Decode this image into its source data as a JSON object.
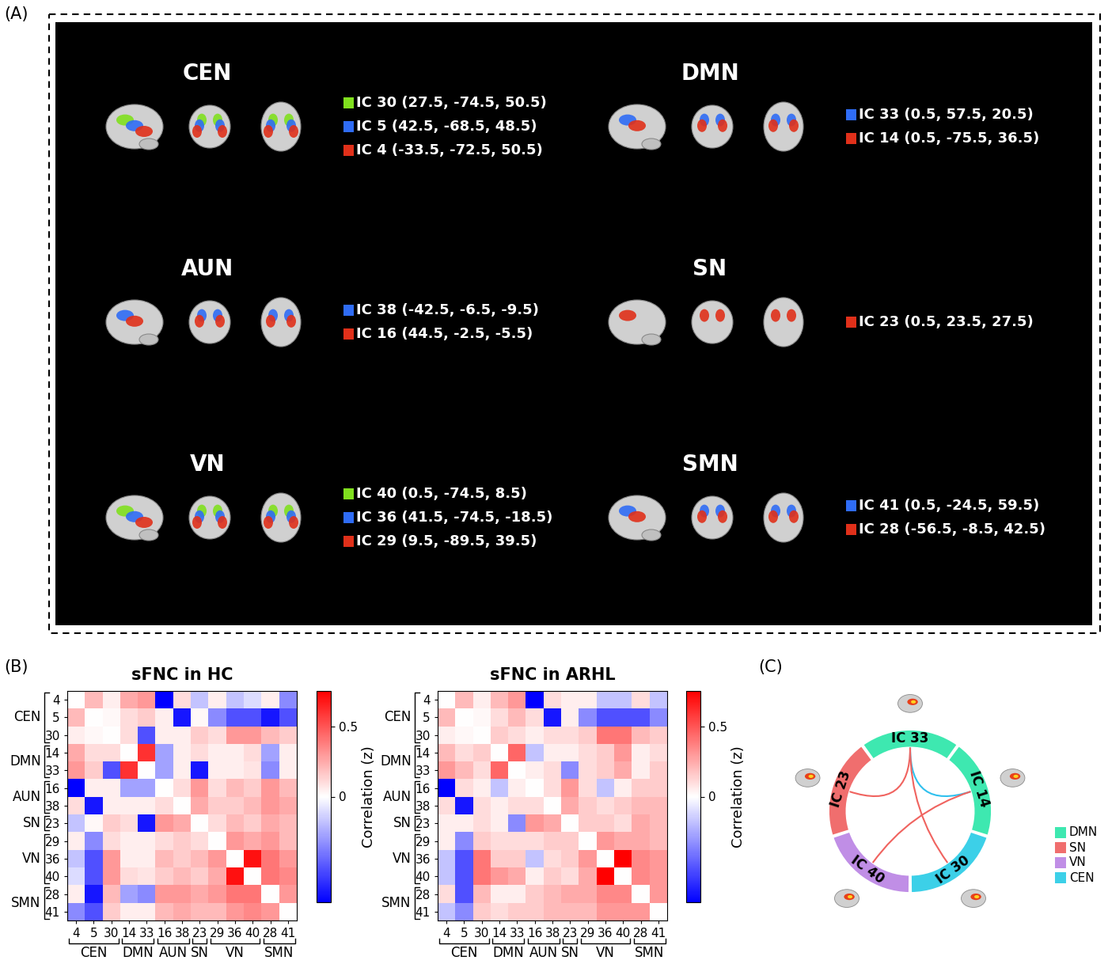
{
  "panel_labels": [
    "(A)",
    "(B)",
    "(C)"
  ],
  "panel_a": {
    "networks": [
      {
        "name": "CEN",
        "components": [
          {
            "label": "IC 30 (27.5, -74.5, 50.5)",
            "color": "#80e01e"
          },
          {
            "label": "IC 5 (42.5, -68.5, 48.5)",
            "color": "#2f6cf5"
          },
          {
            "label": "IC 4 (-33.5, -72.5, 50.5)",
            "color": "#e0301a"
          }
        ]
      },
      {
        "name": "DMN",
        "components": [
          {
            "label": "IC 33 (0.5, 57.5, 20.5)",
            "color": "#2f6cf5"
          },
          {
            "label": "IC 14 (0.5, -75.5, 36.5)",
            "color": "#e0301a"
          }
        ]
      },
      {
        "name": "AUN",
        "components": [
          {
            "label": "IC 38 (-42.5, -6.5, -9.5)",
            "color": "#2f6cf5"
          },
          {
            "label": "IC 16 (44.5, -2.5, -5.5)",
            "color": "#e0301a"
          }
        ]
      },
      {
        "name": "SN",
        "components": [
          {
            "label": "IC 23 (0.5, 23.5, 27.5)",
            "color": "#e0301a"
          }
        ]
      },
      {
        "name": "VN",
        "components": [
          {
            "label": "IC 40 (0.5, -74.5, 8.5)",
            "color": "#80e01e"
          },
          {
            "label": "IC 36 (41.5, -74.5, -18.5)",
            "color": "#2f6cf5"
          },
          {
            "label": "IC 29 (9.5, -89.5, 39.5)",
            "color": "#e0301a"
          }
        ]
      },
      {
        "name": "SMN",
        "components": [
          {
            "label": "IC 41 (0.5, -24.5, 59.5)",
            "color": "#2f6cf5"
          },
          {
            "label": "IC 28 (-56.5, -8.5, 42.5)",
            "color": "#e0301a"
          }
        ]
      }
    ]
  },
  "chart_data": [
    {
      "type": "heatmap",
      "title": "sFNC in HC",
      "categories": [
        "4",
        "5",
        "30",
        "14",
        "33",
        "16",
        "38",
        "23",
        "29",
        "36",
        "40",
        "28",
        "41"
      ],
      "groups": [
        {
          "name": "CEN",
          "members": [
            "4",
            "5",
            "30"
          ]
        },
        {
          "name": "DMN",
          "members": [
            "14",
            "33"
          ]
        },
        {
          "name": "AUN",
          "members": [
            "16",
            "38"
          ]
        },
        {
          "name": "SN",
          "members": [
            "23"
          ]
        },
        {
          "name": "VN",
          "members": [
            "29",
            "36",
            "40"
          ]
        },
        {
          "name": "SMN",
          "members": [
            "28",
            "41"
          ]
        }
      ],
      "cells": [
        [
          0,
          0.2,
          0.05,
          0.25,
          0.3,
          -0.22,
          0.1,
          -0.05,
          0.05,
          -0.05,
          -0.03,
          0.05,
          -0.1
        ],
        [
          0.2,
          0,
          0.02,
          0.1,
          0.15,
          0.05,
          -0.2,
          0.02,
          -0.1,
          -0.15,
          -0.15,
          -0.2,
          -0.15
        ],
        [
          0.05,
          0.02,
          0,
          0.1,
          -0.15,
          0.05,
          0.05,
          0.15,
          0.1,
          0.3,
          0.3,
          0.2,
          0.15
        ],
        [
          0.25,
          0.1,
          0.1,
          0,
          0.6,
          -0.08,
          0.05,
          0.1,
          0.05,
          0.05,
          0.1,
          -0.08,
          0.05
        ],
        [
          0.3,
          0.15,
          -0.15,
          0.6,
          0,
          -0.08,
          0.05,
          -0.2,
          0.05,
          0.05,
          0.08,
          -0.1,
          0.05
        ],
        [
          -0.22,
          0.05,
          0.05,
          -0.08,
          -0.08,
          0,
          0.1,
          0.3,
          0.1,
          0.2,
          0.15,
          0.3,
          0.2
        ],
        [
          0.1,
          -0.2,
          0.05,
          0.05,
          0.05,
          0.1,
          0,
          0.25,
          0.15,
          0.15,
          0.2,
          0.3,
          0.25
        ],
        [
          -0.05,
          0.02,
          0.15,
          0.1,
          -0.2,
          0.3,
          0.25,
          0,
          0.1,
          0.2,
          0.15,
          0.25,
          0.2
        ],
        [
          0.05,
          -0.1,
          0.1,
          0.05,
          0.05,
          0.1,
          0.15,
          0.1,
          0,
          0.3,
          0.25,
          0.3,
          0.2
        ],
        [
          -0.05,
          -0.15,
          0.3,
          0.05,
          0.05,
          0.2,
          0.15,
          0.2,
          0.3,
          0,
          0.7,
          0.4,
          0.3
        ],
        [
          -0.03,
          -0.15,
          0.3,
          0.1,
          0.08,
          0.15,
          0.2,
          0.15,
          0.25,
          0.7,
          0,
          0.4,
          0.35
        ],
        [
          0.05,
          -0.2,
          0.2,
          -0.08,
          -0.1,
          0.3,
          0.3,
          0.25,
          0.3,
          0.4,
          0.4,
          0,
          0.3
        ],
        [
          -0.1,
          -0.15,
          0.15,
          0.05,
          0.05,
          0.2,
          0.25,
          0.2,
          0.2,
          0.3,
          0.35,
          0.3,
          0
        ]
      ],
      "colorbar": {
        "range": [
          -0.22,
          0.75
        ],
        "ticks": [
          0,
          0.5
        ],
        "label": "Correlation (z)"
      }
    },
    {
      "type": "heatmap",
      "title": "sFNC in ARHL",
      "categories": [
        "4",
        "5",
        "30",
        "14",
        "33",
        "16",
        "38",
        "23",
        "29",
        "36",
        "40",
        "28",
        "41"
      ],
      "groups": [
        {
          "name": "CEN",
          "members": [
            "4",
            "5",
            "30"
          ]
        },
        {
          "name": "DMN",
          "members": [
            "14",
            "33"
          ]
        },
        {
          "name": "AUN",
          "members": [
            "16",
            "38"
          ]
        },
        {
          "name": "SN",
          "members": [
            "23"
          ]
        },
        {
          "name": "VN",
          "members": [
            "29",
            "36",
            "40"
          ]
        },
        {
          "name": "SMN",
          "members": [
            "28",
            "41"
          ]
        }
      ],
      "cells": [
        [
          0,
          0.2,
          0.05,
          0.2,
          0.3,
          -0.22,
          0.1,
          0.05,
          0.05,
          -0.05,
          -0.05,
          0.1,
          -0.05
        ],
        [
          0.2,
          0,
          0.02,
          0.1,
          0.2,
          0.1,
          -0.2,
          0.05,
          -0.1,
          -0.15,
          -0.15,
          -0.15,
          -0.1
        ],
        [
          0.05,
          0.02,
          0,
          0.15,
          0.1,
          0.05,
          0.1,
          0.1,
          0.15,
          0.4,
          0.4,
          0.2,
          0.15
        ],
        [
          0.2,
          0.1,
          0.15,
          0,
          0.45,
          -0.05,
          0.05,
          0.05,
          0.1,
          0.15,
          0.3,
          0.05,
          0.1
        ],
        [
          0.3,
          0.2,
          0.1,
          0.45,
          0,
          0.05,
          0.1,
          -0.1,
          0.1,
          0.15,
          0.25,
          0.05,
          0.15
        ],
        [
          -0.22,
          0.1,
          0.05,
          -0.05,
          0.05,
          0,
          0.1,
          0.3,
          0.1,
          -0.05,
          0.05,
          0.15,
          0.15
        ],
        [
          0.1,
          -0.2,
          0.1,
          0.05,
          0.1,
          0.1,
          0,
          0.25,
          0.15,
          0.1,
          0.15,
          0.2,
          0.2
        ],
        [
          0.05,
          0.05,
          0.1,
          0.05,
          -0.1,
          0.3,
          0.25,
          0,
          0.15,
          0.15,
          0.1,
          0.25,
          0.2
        ],
        [
          0.05,
          -0.1,
          0.15,
          0.1,
          0.1,
          0.1,
          0.15,
          0.15,
          0,
          0.3,
          0.25,
          0.25,
          0.2
        ],
        [
          -0.05,
          -0.15,
          0.4,
          0.15,
          0.15,
          -0.05,
          0.1,
          0.15,
          0.3,
          0,
          0.75,
          0.35,
          0.3
        ],
        [
          -0.05,
          -0.15,
          0.4,
          0.3,
          0.25,
          0.05,
          0.15,
          0.1,
          0.25,
          0.75,
          0,
          0.35,
          0.3
        ],
        [
          0.1,
          -0.15,
          0.2,
          0.05,
          0.05,
          0.15,
          0.2,
          0.25,
          0.25,
          0.35,
          0.35,
          0,
          0.3
        ],
        [
          -0.05,
          -0.1,
          0.15,
          0.1,
          0.15,
          0.15,
          0.2,
          0.2,
          0.2,
          0.3,
          0.3,
          0.3,
          0
        ]
      ],
      "colorbar": {
        "range": [
          -0.22,
          0.75
        ],
        "ticks": [
          0,
          0.5
        ],
        "label": "Correlation (z)"
      }
    }
  ],
  "panel_c": {
    "networks": [
      {
        "name": "DMN",
        "color": "#3ee8b0"
      },
      {
        "name": "SN",
        "color": "#f06e6e"
      },
      {
        "name": "VN",
        "color": "#c08ee6"
      },
      {
        "name": "CEN",
        "color": "#3cd0e8"
      }
    ],
    "segments": [
      {
        "label": "IC 33",
        "network": "DMN"
      },
      {
        "label": "IC 14",
        "network": "DMN"
      },
      {
        "label": "IC 30",
        "network": "CEN"
      },
      {
        "label": "IC 40",
        "network": "VN"
      },
      {
        "label": "IC 23",
        "network": "SN"
      }
    ],
    "links": [
      {
        "source": "IC 33",
        "target": "IC 23",
        "color": "#f0635f"
      },
      {
        "source": "IC 33",
        "target": "IC 14",
        "color": "#2fc0ee"
      },
      {
        "source": "IC 33",
        "target": "IC 30",
        "color": "#f0635f"
      },
      {
        "source": "IC 14",
        "target": "IC 40",
        "color": "#f0635f"
      }
    ]
  }
}
